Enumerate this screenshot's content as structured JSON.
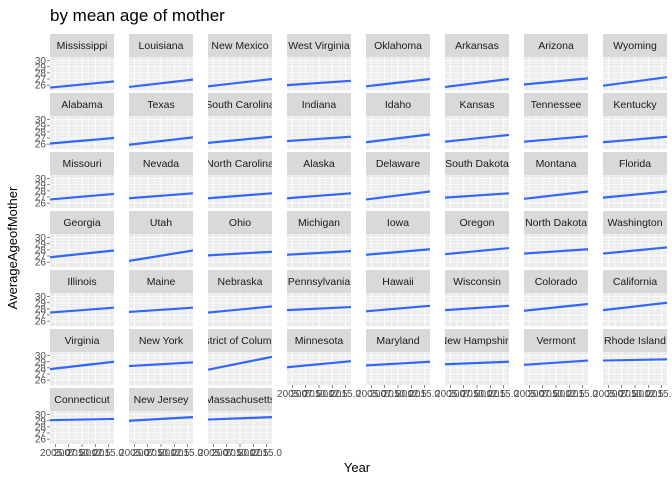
{
  "chart_data": {
    "type": "line",
    "title": "by mean age of mother",
    "xlabel": "Year",
    "ylabel": "AverageAgeofMother",
    "xlim": [
      2004,
      2016
    ],
    "ylim": [
      25.2,
      30.6
    ],
    "x_ticks": [
      "2005.0",
      "2007.5",
      "2010.0",
      "2012.5",
      "2015.0"
    ],
    "x_tick_values": [
      2005,
      2007.5,
      2010,
      2012.5,
      2015
    ],
    "y_ticks": [
      "26",
      "27",
      "28",
      "29",
      "30"
    ],
    "y_tick_values": [
      26,
      27,
      28,
      29,
      30
    ],
    "grid": true,
    "ncol": 8,
    "facets": [
      {
        "name": "Mississippi",
        "x": [
          2004,
          2016
        ],
        "y": [
          25.6,
          26.6
        ]
      },
      {
        "name": "Louisiana",
        "x": [
          2004,
          2016
        ],
        "y": [
          25.7,
          26.9
        ]
      },
      {
        "name": "New Mexico",
        "x": [
          2004,
          2016
        ],
        "y": [
          25.8,
          27.0
        ]
      },
      {
        "name": "West Virginia",
        "x": [
          2004,
          2016
        ],
        "y": [
          26.0,
          26.7
        ]
      },
      {
        "name": "Oklahoma",
        "x": [
          2004,
          2016
        ],
        "y": [
          25.8,
          27.0
        ]
      },
      {
        "name": "Arkansas",
        "x": [
          2004,
          2016
        ],
        "y": [
          25.7,
          27.0
        ]
      },
      {
        "name": "Arizona",
        "x": [
          2004,
          2016
        ],
        "y": [
          26.1,
          27.1
        ]
      },
      {
        "name": "Wyoming",
        "x": [
          2004,
          2016
        ],
        "y": [
          25.9,
          27.3
        ]
      },
      {
        "name": "Alabama",
        "x": [
          2004,
          2016
        ],
        "y": [
          26.1,
          27.0
        ]
      },
      {
        "name": "Texas",
        "x": [
          2004,
          2016
        ],
        "y": [
          25.9,
          27.1
        ]
      },
      {
        "name": "South Carolina",
        "x": [
          2004,
          2016
        ],
        "y": [
          26.2,
          27.2
        ]
      },
      {
        "name": "Indiana",
        "x": [
          2004,
          2016
        ],
        "y": [
          26.5,
          27.2
        ]
      },
      {
        "name": "Idaho",
        "x": [
          2004,
          2016
        ],
        "y": [
          26.3,
          27.6
        ]
      },
      {
        "name": "Kansas",
        "x": [
          2004,
          2016
        ],
        "y": [
          26.4,
          27.5
        ]
      },
      {
        "name": "Tennessee",
        "x": [
          2004,
          2016
        ],
        "y": [
          26.4,
          27.3
        ]
      },
      {
        "name": "Kentucky",
        "x": [
          2004,
          2016
        ],
        "y": [
          26.3,
          27.2
        ]
      },
      {
        "name": "Missouri",
        "x": [
          2004,
          2016
        ],
        "y": [
          26.6,
          27.5
        ]
      },
      {
        "name": "Nevada",
        "x": [
          2004,
          2016
        ],
        "y": [
          26.8,
          27.6
        ]
      },
      {
        "name": "North Carolina",
        "x": [
          2004,
          2016
        ],
        "y": [
          26.8,
          27.6
        ]
      },
      {
        "name": "Alaska",
        "x": [
          2004,
          2016
        ],
        "y": [
          26.8,
          27.6
        ]
      },
      {
        "name": "Delaware",
        "x": [
          2004,
          2016
        ],
        "y": [
          26.6,
          27.9
        ]
      },
      {
        "name": "South Dakota",
        "x": [
          2004,
          2016
        ],
        "y": [
          26.9,
          27.6
        ]
      },
      {
        "name": "Montana",
        "x": [
          2004,
          2016
        ],
        "y": [
          26.7,
          27.9
        ]
      },
      {
        "name": "Florida",
        "x": [
          2004,
          2016
        ],
        "y": [
          26.9,
          27.9
        ]
      },
      {
        "name": "Georgia",
        "x": [
          2004,
          2016
        ],
        "y": [
          26.8,
          27.9
        ]
      },
      {
        "name": "Utah",
        "x": [
          2004,
          2016
        ],
        "y": [
          26.2,
          27.9
        ]
      },
      {
        "name": "Ohio",
        "x": [
          2004,
          2016
        ],
        "y": [
          27.1,
          27.7
        ]
      },
      {
        "name": "Michigan",
        "x": [
          2004,
          2016
        ],
        "y": [
          27.2,
          27.8
        ]
      },
      {
        "name": "Iowa",
        "x": [
          2004,
          2016
        ],
        "y": [
          27.2,
          28.1
        ]
      },
      {
        "name": "Oregon",
        "x": [
          2004,
          2016
        ],
        "y": [
          27.3,
          28.3
        ]
      },
      {
        "name": "North Dakota",
        "x": [
          2004,
          2016
        ],
        "y": [
          27.4,
          28.1
        ]
      },
      {
        "name": "Washington",
        "x": [
          2004,
          2016
        ],
        "y": [
          27.4,
          28.4
        ]
      },
      {
        "name": "Illinois",
        "x": [
          2004,
          2016
        ],
        "y": [
          27.4,
          28.2
        ]
      },
      {
        "name": "Maine",
        "x": [
          2004,
          2016
        ],
        "y": [
          27.5,
          28.2
        ]
      },
      {
        "name": "Nebraska",
        "x": [
          2004,
          2016
        ],
        "y": [
          27.4,
          28.4
        ]
      },
      {
        "name": "Pennsylvania",
        "x": [
          2004,
          2016
        ],
        "y": [
          27.8,
          28.3
        ]
      },
      {
        "name": "Hawaii",
        "x": [
          2004,
          2016
        ],
        "y": [
          27.6,
          28.5
        ]
      },
      {
        "name": "Wisconsin",
        "x": [
          2004,
          2016
        ],
        "y": [
          27.8,
          28.5
        ]
      },
      {
        "name": "Colorado",
        "x": [
          2004,
          2016
        ],
        "y": [
          27.7,
          28.8
        ]
      },
      {
        "name": "California",
        "x": [
          2004,
          2016
        ],
        "y": [
          27.8,
          29.0
        ]
      },
      {
        "name": "Virginia",
        "x": [
          2004,
          2016
        ],
        "y": [
          27.8,
          29.0
        ]
      },
      {
        "name": "New York",
        "x": [
          2004,
          2016
        ],
        "y": [
          28.3,
          28.9
        ]
      },
      {
        "name": "District of Columbia",
        "x": [
          2004,
          2016
        ],
        "y": [
          27.7,
          29.8
        ]
      },
      {
        "name": "Minnesota",
        "x": [
          2004,
          2016
        ],
        "y": [
          28.1,
          29.1
        ]
      },
      {
        "name": "Maryland",
        "x": [
          2004,
          2016
        ],
        "y": [
          28.4,
          29.0
        ]
      },
      {
        "name": "New Hampshire",
        "x": [
          2004,
          2016
        ],
        "y": [
          28.6,
          29.0
        ]
      },
      {
        "name": "Vermont",
        "x": [
          2004,
          2016
        ],
        "y": [
          28.5,
          29.2
        ]
      },
      {
        "name": "Rhode Island",
        "x": [
          2004,
          2016
        ],
        "y": [
          29.2,
          29.4
        ]
      },
      {
        "name": "Connecticut",
        "x": [
          2004,
          2016
        ],
        "y": [
          29.1,
          29.3
        ]
      },
      {
        "name": "New Jersey",
        "x": [
          2004,
          2016
        ],
        "y": [
          29.0,
          29.6
        ]
      },
      {
        "name": "Massachusetts",
        "x": [
          2004,
          2016
        ],
        "y": [
          29.2,
          29.6
        ]
      }
    ]
  },
  "colors": {
    "line": "#3366ff",
    "panel_background": "#ebebeb",
    "strip_background": "#d9d9d9",
    "grid": "#ffffff"
  }
}
